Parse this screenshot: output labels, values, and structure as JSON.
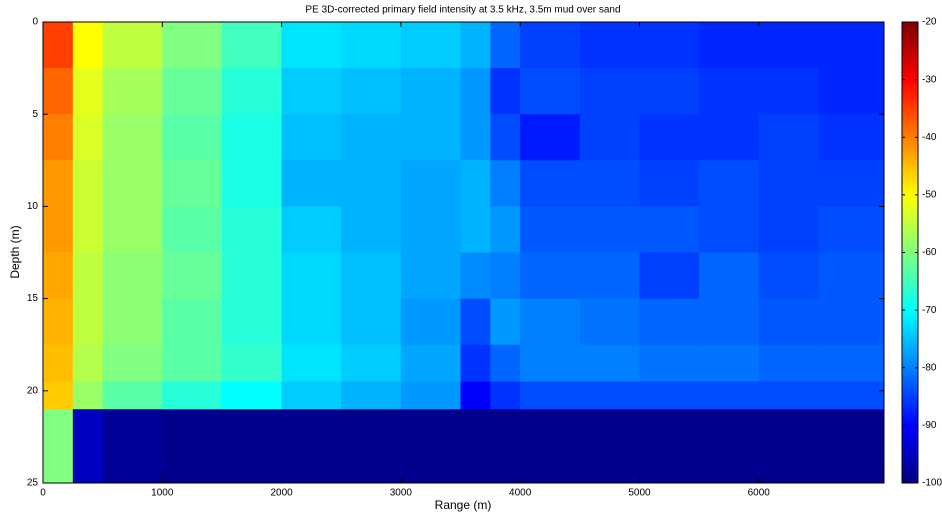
{
  "chart_data": {
    "type": "heatmap",
    "title": "PE 3D-corrected primary field intensity at 3.5 kHz, 3.5m mud over sand",
    "x_label": "Range (m)",
    "y_label": "Depth (m)",
    "colormap": "jet",
    "x_edges": [
      0,
      250,
      500,
      1000,
      1500,
      2000,
      2500,
      3000,
      3500,
      3750,
      4000,
      4500,
      5000,
      5500,
      6000,
      6500,
      7050
    ],
    "y_edges": [
      0,
      2.5,
      5,
      7.5,
      10,
      12.5,
      15,
      17.5,
      19.5,
      21,
      25
    ],
    "z": [
      [
        -35,
        -50,
        -55,
        -60,
        -65,
        -72,
        -73,
        -74,
        -76,
        -82,
        -85,
        -86,
        -86,
        -87,
        -87,
        -87
      ],
      [
        -38,
        -52,
        -57,
        -62,
        -67,
        -74,
        -75,
        -76,
        -78,
        -86,
        -84,
        -85,
        -85,
        -86,
        -86,
        -87
      ],
      [
        -40,
        -53,
        -58,
        -63,
        -68,
        -75,
        -76,
        -76,
        -78,
        -84,
        -88,
        -85,
        -86,
        -86,
        -85,
        -86
      ],
      [
        -42,
        -54,
        -58,
        -62,
        -68,
        -76,
        -76,
        -77,
        -76,
        -80,
        -84,
        -84,
        -85,
        -84,
        -85,
        -85
      ],
      [
        -42,
        -54,
        -58,
        -63,
        -67,
        -74,
        -76,
        -77,
        -76,
        -78,
        -83,
        -83,
        -83,
        -84,
        -85,
        -84
      ],
      [
        -43,
        -55,
        -59,
        -62,
        -67,
        -73,
        -75,
        -77,
        -79,
        -80,
        -82,
        -82,
        -85,
        -82,
        -84,
        -83
      ],
      [
        -44,
        -55,
        -59,
        -63,
        -67,
        -73,
        -75,
        -78,
        -84,
        -78,
        -80,
        -81,
        -82,
        -82,
        -83,
        -83
      ],
      [
        -45,
        -56,
        -60,
        -63,
        -66,
        -72,
        -74,
        -77,
        -86,
        -82,
        -80,
        -80,
        -81,
        -81,
        -82,
        -82
      ],
      [
        -46,
        -58,
        -63,
        -67,
        -70,
        -74,
        -76,
        -78,
        -90,
        -86,
        -84,
        -84,
        -84,
        -84,
        -84,
        -84
      ],
      [
        -60,
        -95,
        -98,
        -99,
        -99,
        -99,
        -99,
        -99,
        -99,
        -99,
        -99,
        -99,
        -99,
        -99,
        -99,
        -99
      ]
    ],
    "xlim": [
      0,
      7050
    ],
    "xticks": [
      0,
      1000,
      2000,
      3000,
      4000,
      5000,
      6000
    ],
    "ylim": [
      0,
      25
    ],
    "y_inverted": true,
    "yticks": [
      0,
      5,
      10,
      15,
      20,
      25
    ],
    "clim": [
      -100,
      -20
    ],
    "cticks": [
      -100,
      -90,
      -80,
      -70,
      -60,
      -50,
      -40,
      -30,
      -20
    ]
  }
}
